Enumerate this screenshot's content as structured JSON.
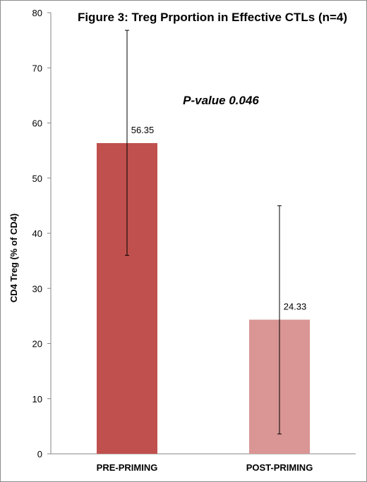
{
  "chart_data": {
    "type": "bar",
    "title": "Figure 3: Treg Prportion in Effective CTLs (n=4)",
    "xlabel": "",
    "ylabel": "CD4 Treg (% of CD4)",
    "ylim": [
      0,
      80
    ],
    "yticks": [
      0,
      10,
      20,
      30,
      40,
      50,
      60,
      70,
      80
    ],
    "categories": [
      "PRE-PRIMING",
      "POST-PRIMING"
    ],
    "values": [
      56.35,
      24.33
    ],
    "data_labels": [
      "56.35",
      "24.33"
    ],
    "error_bars": [
      {
        "low": 36.0,
        "high": 76.8
      },
      {
        "low": 3.6,
        "high": 45.0
      }
    ],
    "bar_colors": [
      "#c0504d",
      "#d99694"
    ],
    "annotation": "P-value 0.046",
    "grid": false,
    "legend": "none"
  }
}
